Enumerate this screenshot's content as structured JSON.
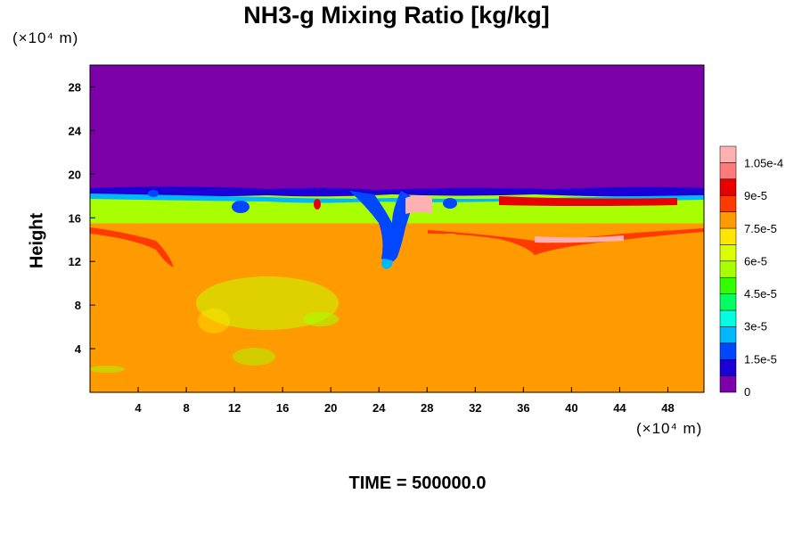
{
  "chart_data": {
    "type": "heatmap",
    "title": "NH3-g Mixing Ratio [kg/kg]",
    "xlabel": "",
    "ylabel": "Height",
    "x_unit": "(×10⁴ m)",
    "y_unit": "(×10⁴ m)",
    "xlim": [
      0,
      51
    ],
    "ylim": [
      0,
      30
    ],
    "x_ticks": [
      4,
      8,
      12,
      16,
      20,
      24,
      28,
      32,
      36,
      40,
      44,
      48
    ],
    "y_ticks": [
      4,
      8,
      12,
      16,
      20,
      24,
      28
    ],
    "colorbar": {
      "min": 0,
      "max": 0.000113,
      "tick_values": [
        0,
        1.5e-05,
        3e-05,
        4.5e-05,
        6e-05,
        7.5e-05,
        9e-05,
        0.000105
      ],
      "tick_labels": [
        "0",
        "1.5e-5",
        "3e-5",
        "4.5e-5",
        "6e-5",
        "7.5e-5",
        "9e-5",
        "1.05e-4"
      ],
      "colors": [
        "#7b00a8",
        "#1a00d6",
        "#0047ff",
        "#00b8ff",
        "#00ffe0",
        "#00ff60",
        "#30ff00",
        "#a8ff00",
        "#dcff00",
        "#ffe600",
        "#ff9a00",
        "#ff3a00",
        "#e60000",
        "#ff7a7a",
        "#ffb0b0"
      ]
    },
    "regions": [
      {
        "description_value": 0,
        "y_range": [
          18.5,
          30
        ],
        "x_range": [
          0,
          51
        ]
      },
      {
        "description_value": 6e-05,
        "y_range": [
          15.5,
          18.2
        ],
        "x_range": [
          0,
          51
        ]
      },
      {
        "description_value": 7.8e-05,
        "y_range": [
          0,
          15.5
        ],
        "x_range": [
          0,
          51
        ]
      }
    ]
  },
  "footer": {
    "time_label": "TIME = 500000.0"
  }
}
